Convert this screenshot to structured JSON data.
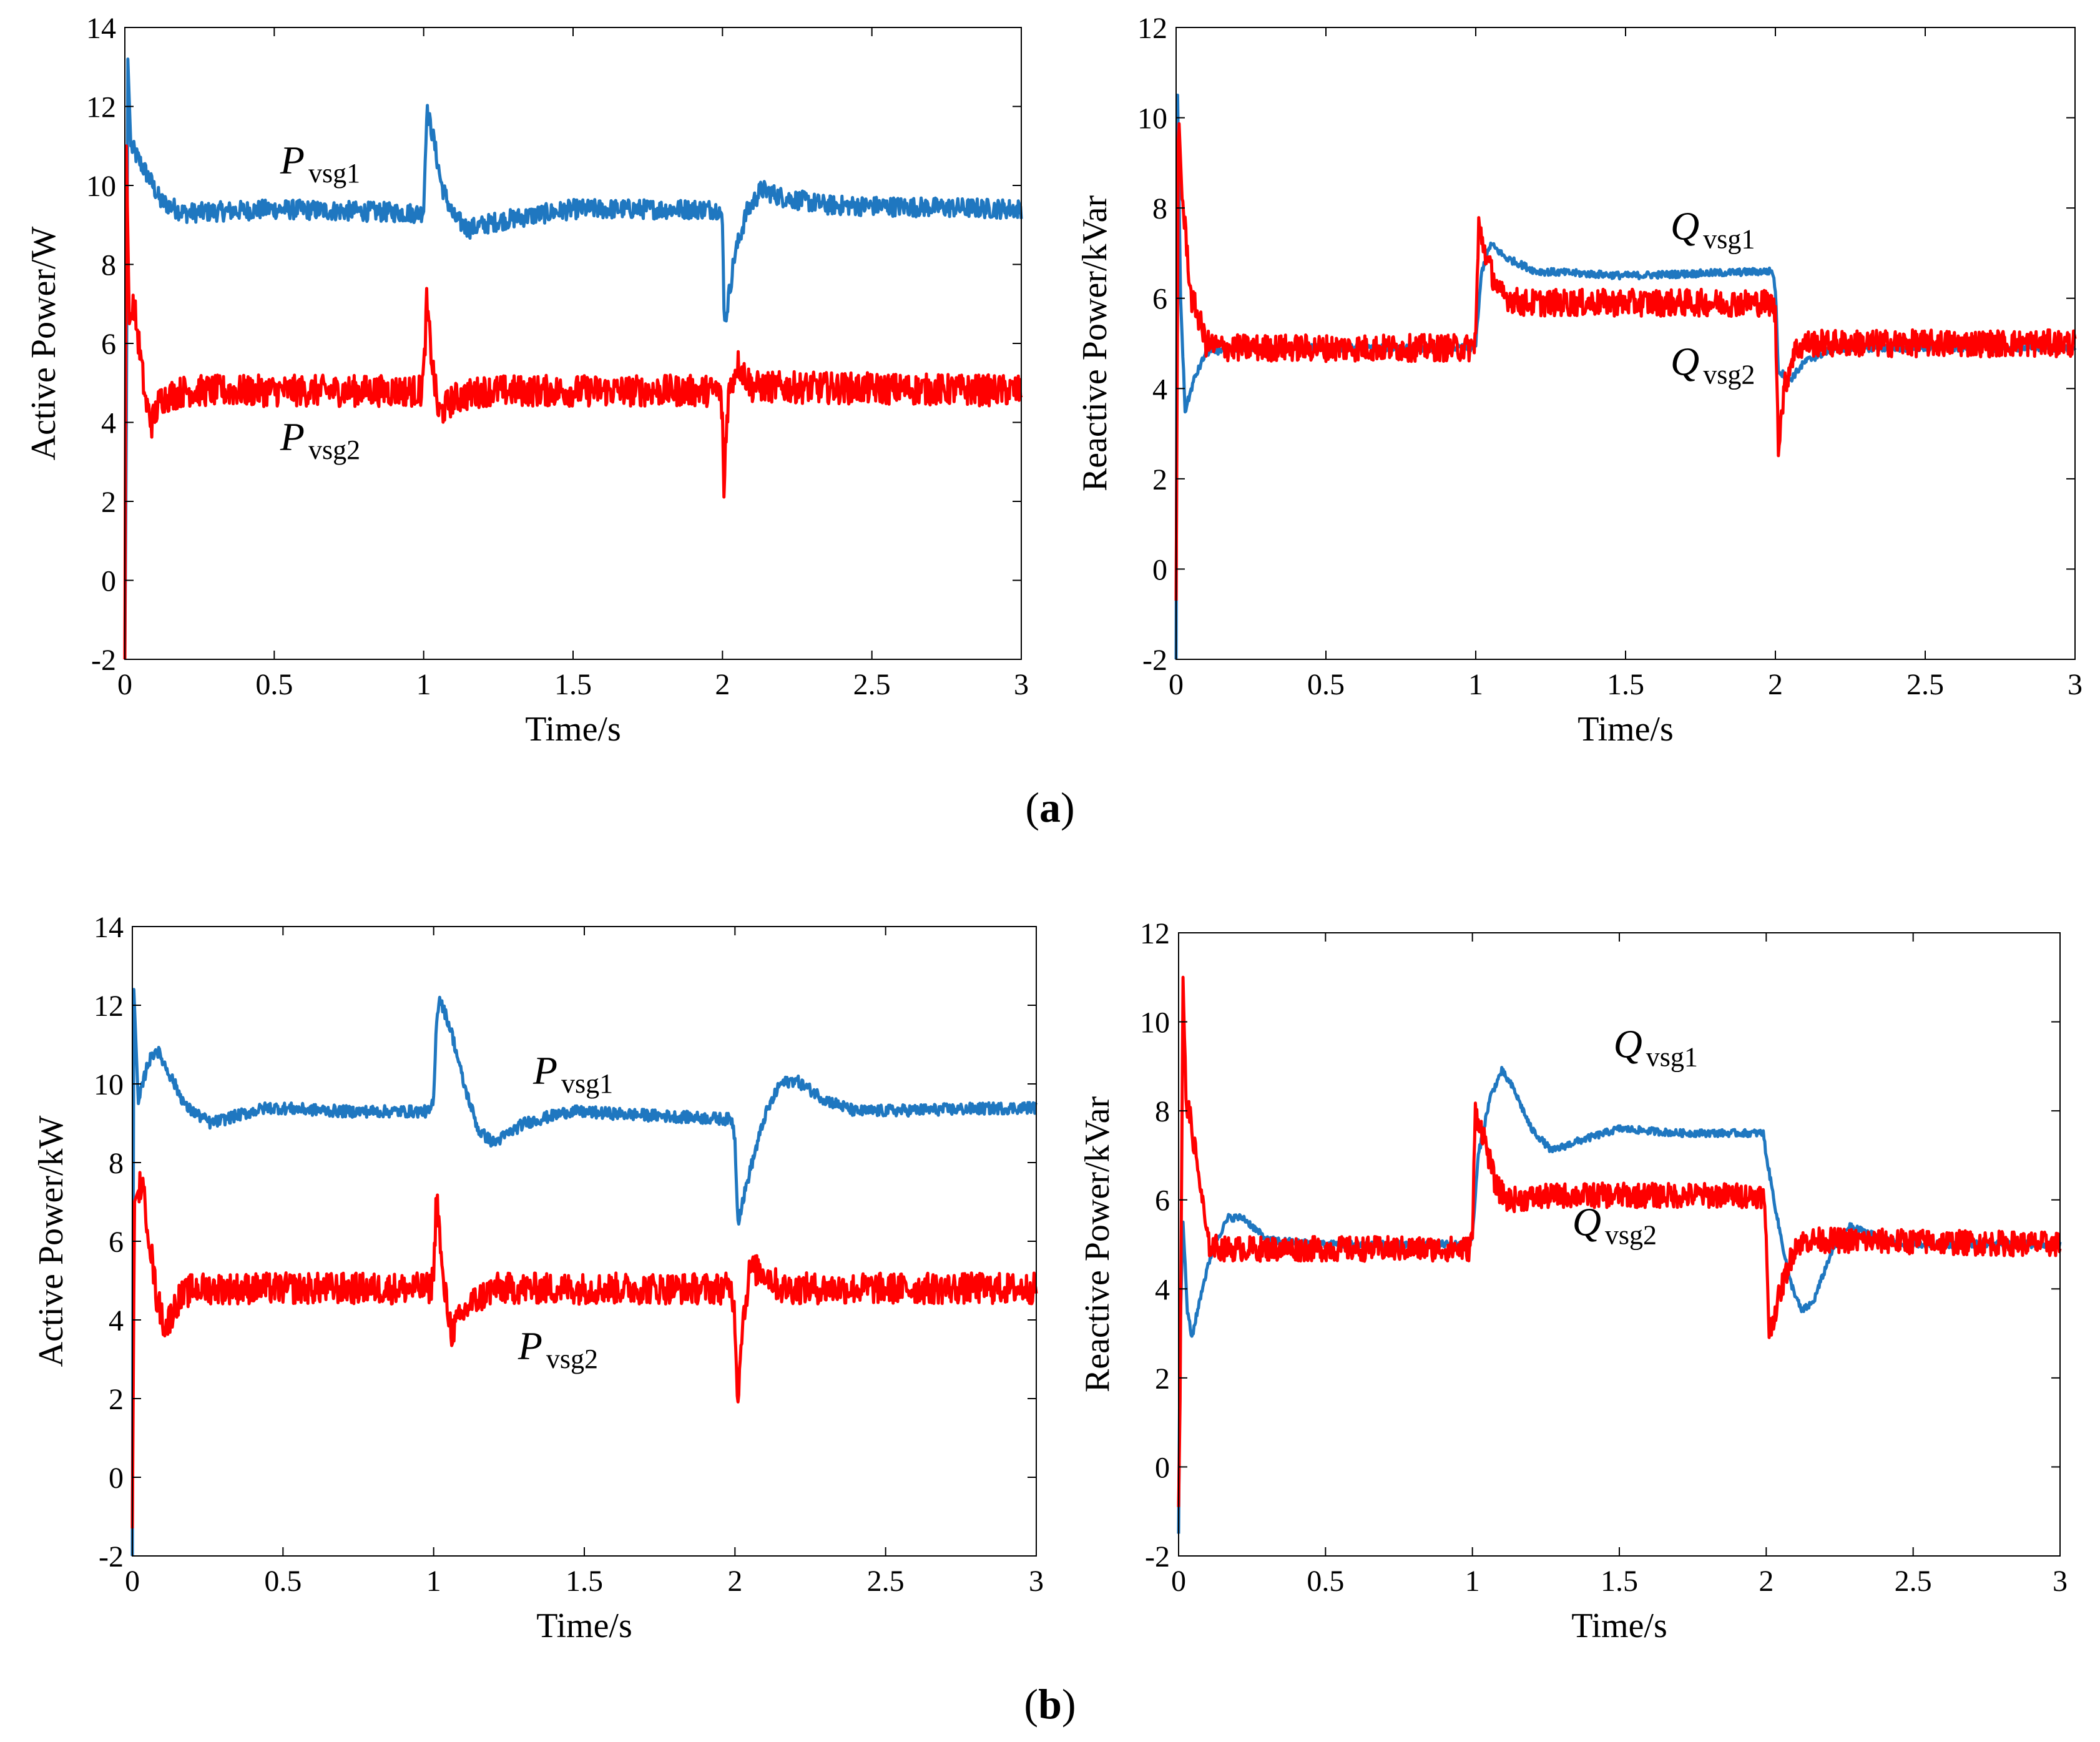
{
  "colors": {
    "blue": "#1F77C0",
    "red": "#FF0000"
  },
  "captions": {
    "a": "a",
    "b": "b"
  },
  "chart_data": [
    {
      "id": "a-active",
      "type": "line",
      "xlabel": "Time/s",
      "ylabel": "Active Power/W",
      "xlim": [
        0,
        3
      ],
      "ylim": [
        -2,
        14
      ],
      "xticks": [
        "0",
        "0.5",
        "1",
        "1.5",
        "2",
        "2.5",
        "3"
      ],
      "yticks": [
        "-2",
        "0",
        "2",
        "4",
        "6",
        "8",
        "10",
        "12",
        "14"
      ],
      "series": [
        {
          "name": "P_vsg1",
          "label_main": "P",
          "label_sub": "vsg1",
          "color": "#1F77C0",
          "points": [
            [
              0,
              -2
            ],
            [
              0.005,
              4
            ],
            [
              0.01,
              13.2
            ],
            [
              0.02,
              11
            ],
            [
              0.05,
              10.6
            ],
            [
              0.08,
              10.2
            ],
            [
              0.12,
              9.6
            ],
            [
              0.2,
              9.3
            ],
            [
              0.5,
              9.4
            ],
            [
              0.99,
              9.3
            ],
            [
              1.0,
              9.4
            ],
            [
              1.01,
              11.9
            ],
            [
              1.03,
              11.3
            ],
            [
              1.06,
              10
            ],
            [
              1.1,
              9.2
            ],
            [
              1.15,
              8.9
            ],
            [
              1.25,
              9.1
            ],
            [
              1.5,
              9.4
            ],
            [
              1.99,
              9.4
            ],
            [
              2.0,
              9.0
            ],
            [
              2.005,
              7
            ],
            [
              2.01,
              6.6
            ],
            [
              2.04,
              8.2
            ],
            [
              2.08,
              9.3
            ],
            [
              2.13,
              9.9
            ],
            [
              2.2,
              9.7
            ],
            [
              2.35,
              9.5
            ],
            [
              3.0,
              9.4
            ]
          ],
          "noise": 0.25
        },
        {
          "name": "P_vsg2",
          "label_main": "P",
          "label_sub": "vsg2",
          "color": "#FF0000",
          "points": [
            [
              0,
              -2
            ],
            [
              0.005,
              11
            ],
            [
              0.015,
              6.5
            ],
            [
              0.03,
              7
            ],
            [
              0.05,
              5.8
            ],
            [
              0.07,
              4.5
            ],
            [
              0.09,
              4.0
            ],
            [
              0.12,
              4.6
            ],
            [
              0.2,
              4.8
            ],
            [
              0.99,
              4.8
            ],
            [
              1.0,
              5.2
            ],
            [
              1.01,
              7.0
            ],
            [
              1.03,
              5.4
            ],
            [
              1.05,
              4.2
            ],
            [
              1.1,
              4.6
            ],
            [
              1.2,
              4.8
            ],
            [
              1.99,
              4.8
            ],
            [
              2.0,
              4.2
            ],
            [
              2.005,
              2.0
            ],
            [
              2.01,
              3.5
            ],
            [
              2.02,
              4.7
            ],
            [
              2.05,
              5.5
            ],
            [
              2.1,
              4.9
            ],
            [
              3.0,
              4.8
            ]
          ],
          "noise": 0.4
        }
      ],
      "annotations": [
        {
          "series": "P_vsg1",
          "x": 0.52,
          "y": 10.3
        },
        {
          "series": "P_vsg2",
          "x": 0.52,
          "y": 3.3
        }
      ]
    },
    {
      "id": "a-reactive",
      "type": "line",
      "xlabel": "Time/s",
      "ylabel": "Reactive Power/kVar",
      "xlim": [
        0,
        3
      ],
      "ylim": [
        -2,
        12
      ],
      "xticks": [
        "0",
        "0.5",
        "1",
        "1.5",
        "2",
        "2.5",
        "3"
      ],
      "yticks": [
        "-2",
        "0",
        "2",
        "4",
        "6",
        "8",
        "10",
        "12"
      ],
      "series": [
        {
          "name": "Q_vsg1",
          "label_main": "Q",
          "label_sub": "vsg1",
          "color": "#1F77C0",
          "points": [
            [
              0,
              -2
            ],
            [
              0.005,
              10.5
            ],
            [
              0.015,
              6
            ],
            [
              0.03,
              3.5
            ],
            [
              0.06,
              4.2
            ],
            [
              0.1,
              4.8
            ],
            [
              0.2,
              4.9
            ],
            [
              0.99,
              4.9
            ],
            [
              1.0,
              5.0
            ],
            [
              1.02,
              6.6
            ],
            [
              1.05,
              7.2
            ],
            [
              1.1,
              6.9
            ],
            [
              1.2,
              6.6
            ],
            [
              1.5,
              6.5
            ],
            [
              1.99,
              6.6
            ],
            [
              2.0,
              6.2
            ],
            [
              2.01,
              4.4
            ],
            [
              2.05,
              4.2
            ],
            [
              2.1,
              4.6
            ],
            [
              2.2,
              4.9
            ],
            [
              3.0,
              4.9
            ]
          ],
          "noise": 0.08
        },
        {
          "name": "Q_vsg2",
          "label_main": "Q",
          "label_sub": "vsg2",
          "color": "#FF0000",
          "points": [
            [
              0,
              -0.7
            ],
            [
              0.008,
              10.2
            ],
            [
              0.02,
              8.2
            ],
            [
              0.035,
              7.2
            ],
            [
              0.05,
              6.0
            ],
            [
              0.07,
              5.7
            ],
            [
              0.1,
              5.0
            ],
            [
              0.15,
              4.9
            ],
            [
              0.99,
              4.9
            ],
            [
              1.0,
              5.2
            ],
            [
              1.01,
              7.6
            ],
            [
              1.04,
              6.8
            ],
            [
              1.08,
              6.1
            ],
            [
              1.15,
              5.9
            ],
            [
              1.99,
              5.9
            ],
            [
              2.0,
              5.6
            ],
            [
              2.01,
              2.8
            ],
            [
              2.03,
              4.0
            ],
            [
              2.06,
              4.8
            ],
            [
              2.1,
              5.0
            ],
            [
              3.0,
              5.0
            ]
          ],
          "noise": 0.3
        }
      ],
      "annotations": [
        {
          "series": "Q_vsg1",
          "x": 1.65,
          "y": 7.3
        },
        {
          "series": "Q_vsg2",
          "x": 1.65,
          "y": 4.3
        }
      ]
    },
    {
      "id": "b-active",
      "type": "line",
      "xlabel": "Time/s",
      "ylabel": "Active Power/kW",
      "xlim": [
        0,
        3
      ],
      "ylim": [
        -2,
        14
      ],
      "xticks": [
        "0",
        "0.5",
        "1",
        "1.5",
        "2",
        "2.5",
        "3"
      ],
      "yticks": [
        "-2",
        "0",
        "2",
        "4",
        "6",
        "8",
        "10",
        "12",
        "14"
      ],
      "series": [
        {
          "name": "P_vsg1",
          "label_main": "P",
          "label_sub": "vsg1",
          "color": "#1F77C0",
          "points": [
            [
              0,
              -2
            ],
            [
              0.005,
              12.4
            ],
            [
              0.02,
              9.5
            ],
            [
              0.05,
              10.5
            ],
            [
              0.08,
              10.9
            ],
            [
              0.12,
              10.3
            ],
            [
              0.18,
              9.4
            ],
            [
              0.26,
              9.0
            ],
            [
              0.35,
              9.2
            ],
            [
              0.45,
              9.4
            ],
            [
              0.7,
              9.3
            ],
            [
              0.99,
              9.3
            ],
            [
              1.0,
              9.6
            ],
            [
              1.01,
              11.7
            ],
            [
              1.02,
              12.2
            ],
            [
              1.06,
              11.3
            ],
            [
              1.1,
              10.0
            ],
            [
              1.15,
              8.8
            ],
            [
              1.2,
              8.5
            ],
            [
              1.3,
              9.0
            ],
            [
              1.45,
              9.3
            ],
            [
              1.99,
              9.1
            ],
            [
              2.0,
              8.6
            ],
            [
              2.01,
              6.5
            ],
            [
              2.05,
              7.8
            ],
            [
              2.1,
              9.2
            ],
            [
              2.15,
              10.0
            ],
            [
              2.2,
              10.1
            ],
            [
              2.3,
              9.6
            ],
            [
              2.4,
              9.3
            ],
            [
              3.0,
              9.4
            ]
          ],
          "noise": 0.15
        },
        {
          "name": "P_vsg2",
          "label_main": "P",
          "label_sub": "vsg2",
          "color": "#FF0000",
          "points": [
            [
              0,
              -1.3
            ],
            [
              0.007,
              7
            ],
            [
              0.03,
              7.5
            ],
            [
              0.05,
              6.5
            ],
            [
              0.08,
              4.6
            ],
            [
              0.11,
              3.8
            ],
            [
              0.15,
              4.5
            ],
            [
              0.2,
              4.8
            ],
            [
              0.99,
              4.8
            ],
            [
              1.0,
              5.2
            ],
            [
              1.01,
              7.3
            ],
            [
              1.03,
              5.0
            ],
            [
              1.06,
              3.7
            ],
            [
              1.12,
              4.4
            ],
            [
              1.2,
              4.8
            ],
            [
              1.99,
              4.8
            ],
            [
              2.0,
              4.0
            ],
            [
              2.01,
              1.9
            ],
            [
              2.02,
              3.6
            ],
            [
              2.05,
              5.3
            ],
            [
              2.1,
              5.2
            ],
            [
              2.15,
              4.8
            ],
            [
              3.0,
              4.8
            ]
          ],
          "noise": 0.4
        }
      ],
      "annotations": [
        {
          "series": "P_vsg1",
          "x": 1.33,
          "y": 10.0
        },
        {
          "series": "P_vsg2",
          "x": 1.28,
          "y": 3.0
        }
      ]
    },
    {
      "id": "b-reactive",
      "type": "line",
      "xlabel": "Time/s",
      "ylabel": "Reactive Power/kVar",
      "xlim": [
        0,
        3
      ],
      "ylim": [
        -2,
        12
      ],
      "xticks": [
        "0",
        "0.5",
        "1",
        "1.5",
        "2",
        "2.5",
        "3"
      ],
      "yticks": [
        "-2",
        "0",
        "2",
        "4",
        "6",
        "8",
        "10",
        "12"
      ],
      "series": [
        {
          "name": "Q_vsg1",
          "label_main": "Q",
          "label_sub": "vsg1",
          "color": "#1F77C0",
          "points": [
            [
              0,
              -1.5
            ],
            [
              0.005,
              3
            ],
            [
              0.015,
              5.5
            ],
            [
              0.03,
              3.5
            ],
            [
              0.045,
              2.9
            ],
            [
              0.08,
              4.0
            ],
            [
              0.12,
              5.0
            ],
            [
              0.17,
              5.6
            ],
            [
              0.22,
              5.6
            ],
            [
              0.3,
              5.1
            ],
            [
              0.5,
              5.0
            ],
            [
              0.99,
              5.0
            ],
            [
              1.0,
              5.2
            ],
            [
              1.02,
              7.0
            ],
            [
              1.06,
              8.3
            ],
            [
              1.1,
              8.9
            ],
            [
              1.14,
              8.5
            ],
            [
              1.2,
              7.6
            ],
            [
              1.27,
              7.1
            ],
            [
              1.35,
              7.3
            ],
            [
              1.5,
              7.6
            ],
            [
              1.7,
              7.5
            ],
            [
              1.99,
              7.5
            ],
            [
              2.0,
              7.0
            ],
            [
              2.04,
              5.5
            ],
            [
              2.08,
              4.2
            ],
            [
              2.12,
              3.5
            ],
            [
              2.16,
              3.7
            ],
            [
              2.22,
              4.8
            ],
            [
              2.28,
              5.4
            ],
            [
              2.33,
              5.3
            ],
            [
              2.45,
              5.0
            ],
            [
              3.0,
              5.0
            ]
          ],
          "noise": 0.08
        },
        {
          "name": "Q_vsg2",
          "label_main": "Q",
          "label_sub": "vsg2",
          "color": "#FF0000",
          "points": [
            [
              0,
              -0.9
            ],
            [
              0.005,
              1.5
            ],
            [
              0.015,
              11.0
            ],
            [
              0.025,
              8.3
            ],
            [
              0.04,
              7.8
            ],
            [
              0.07,
              6.5
            ],
            [
              0.1,
              5.0
            ],
            [
              0.15,
              4.9
            ],
            [
              0.99,
              4.9
            ],
            [
              1.0,
              5.2
            ],
            [
              1.01,
              8.0
            ],
            [
              1.04,
              7.4
            ],
            [
              1.08,
              6.3
            ],
            [
              1.12,
              6.0
            ],
            [
              1.3,
              6.1
            ],
            [
              1.99,
              6.1
            ],
            [
              2.0,
              5.2
            ],
            [
              2.01,
              3.0
            ],
            [
              2.03,
              3.5
            ],
            [
              2.06,
              4.2
            ],
            [
              2.1,
              5.0
            ],
            [
              2.15,
              5.1
            ],
            [
              3.0,
              5.0
            ]
          ],
          "noise": 0.28
        }
      ],
      "annotations": [
        {
          "series": "Q_vsg1",
          "x": 1.48,
          "y": 9.2
        },
        {
          "series": "Q_vsg2",
          "x": 1.34,
          "y": 5.2
        }
      ]
    }
  ]
}
